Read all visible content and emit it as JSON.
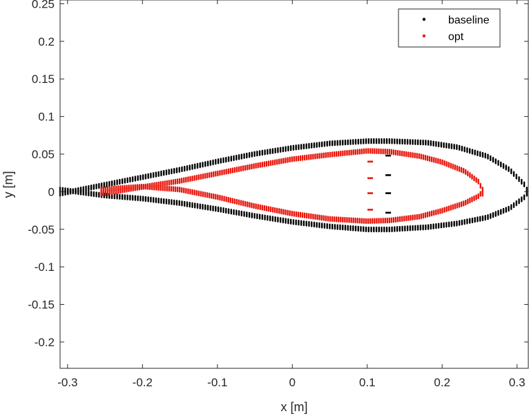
{
  "chart_data": {
    "type": "scatter",
    "xlabel": "x [m]",
    "ylabel": "y [m]",
    "xlim": [
      -0.31,
      0.315
    ],
    "ylim": [
      -0.235,
      0.255
    ],
    "xticks": [
      -0.3,
      -0.2,
      -0.1,
      0,
      0.1,
      0.2,
      0.3
    ],
    "xtick_labels": [
      "-0.3",
      "-0.2",
      "-0.1",
      "0",
      "0.1",
      "0.2",
      "0.3"
    ],
    "yticks": [
      0.25,
      0.2,
      0.15,
      0.1,
      0.05,
      0,
      -0.05,
      -0.1,
      -0.15,
      -0.2
    ],
    "ytick_labels": [
      "0.25",
      "0.2",
      "0.15",
      "0.1",
      "0.05",
      "0",
      "-0.05",
      "-0.1",
      "-0.15",
      "-0.2"
    ],
    "grid": false,
    "legend_position": "top-right",
    "series": [
      {
        "name": "baseline",
        "color": "#000000",
        "upper": [
          [
            -0.31,
            0.0
          ],
          [
            -0.28,
            0.006
          ],
          [
            -0.25,
            0.012
          ],
          [
            -0.2,
            0.022
          ],
          [
            -0.15,
            0.032
          ],
          [
            -0.1,
            0.043
          ],
          [
            -0.05,
            0.053
          ],
          [
            0.0,
            0.061
          ],
          [
            0.05,
            0.067
          ],
          [
            0.1,
            0.07
          ],
          [
            0.13,
            0.07
          ],
          [
            0.18,
            0.068
          ],
          [
            0.22,
            0.062
          ],
          [
            0.26,
            0.05
          ],
          [
            0.29,
            0.032
          ],
          [
            0.31,
            0.012
          ],
          [
            0.313,
            0.0
          ]
        ],
        "lower": [
          [
            -0.31,
            0.0
          ],
          [
            -0.28,
            -0.004
          ],
          [
            -0.25,
            -0.008
          ],
          [
            -0.2,
            -0.012
          ],
          [
            -0.15,
            -0.018
          ],
          [
            -0.1,
            -0.026
          ],
          [
            -0.05,
            -0.035
          ],
          [
            0.0,
            -0.043
          ],
          [
            0.05,
            -0.049
          ],
          [
            0.1,
            -0.053
          ],
          [
            0.13,
            -0.053
          ],
          [
            0.18,
            -0.05
          ],
          [
            0.22,
            -0.045
          ],
          [
            0.26,
            -0.037
          ],
          [
            0.29,
            -0.025
          ],
          [
            0.31,
            -0.01
          ],
          [
            0.313,
            0.0
          ]
        ],
        "dash_x": 0.128,
        "dash_y": [
          0.048,
          0.022,
          -0.002,
          -0.028
        ]
      },
      {
        "name": "opt",
        "color": "#e8160c",
        "upper": [
          [
            -0.255,
            0.0
          ],
          [
            -0.23,
            0.004
          ],
          [
            -0.2,
            0.009
          ],
          [
            -0.15,
            0.017
          ],
          [
            -0.1,
            0.027
          ],
          [
            -0.05,
            0.037
          ],
          [
            0.0,
            0.046
          ],
          [
            0.05,
            0.052
          ],
          [
            0.1,
            0.057
          ],
          [
            0.13,
            0.056
          ],
          [
            0.17,
            0.05
          ],
          [
            0.2,
            0.042
          ],
          [
            0.23,
            0.03
          ],
          [
            0.25,
            0.015
          ],
          [
            0.254,
            0.0
          ]
        ],
        "lower": [
          [
            -0.255,
            0.0
          ],
          [
            -0.23,
            0.002
          ],
          [
            -0.2,
            0.004
          ],
          [
            -0.15,
            0.0
          ],
          [
            -0.1,
            -0.01
          ],
          [
            -0.05,
            -0.022
          ],
          [
            0.0,
            -0.032
          ],
          [
            0.05,
            -0.039
          ],
          [
            0.1,
            -0.042
          ],
          [
            0.13,
            -0.041
          ],
          [
            0.17,
            -0.036
          ],
          [
            0.2,
            -0.028
          ],
          [
            0.23,
            -0.018
          ],
          [
            0.25,
            -0.008
          ],
          [
            0.254,
            0.0
          ]
        ],
        "dash_x": 0.104,
        "dash_y": [
          0.04,
          0.018,
          -0.002,
          -0.024
        ]
      }
    ]
  }
}
